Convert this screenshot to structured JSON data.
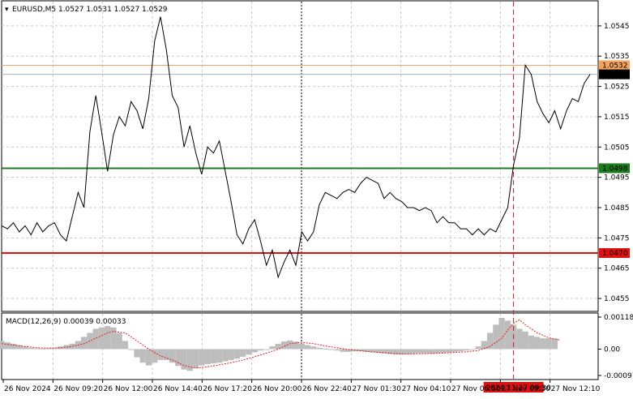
{
  "window": {
    "symbol_header": "EURUSD,M5  1.0527 1.0531 1.0527 1.0529"
  },
  "macd": {
    "header": "MACD(12,26,9) 0.00039 0.00033",
    "axis_labels": [
      "0.00118",
      "0.00",
      "-0.00097"
    ]
  },
  "price_axis": {
    "labels": [
      "1.0545",
      "1.0535",
      "1.0525",
      "1.0515",
      "1.0505",
      "1.0495",
      "1.0485",
      "1.0475",
      "1.0465",
      "1.0455"
    ]
  },
  "time_axis": {
    "labels": [
      "26 Nov 2024",
      "26 Nov 09:20",
      "26 Nov 12:00",
      "26 Nov 14:40",
      "26 Nov 17:20",
      "26 Nov 20:00",
      "26 Nov 22:40",
      "27 Nov 01:30",
      "27 Nov 04:10",
      "27 Nov 06:50",
      "27 Nov 09:30",
      "27 Nov 12:10"
    ],
    "crosshair_label": "2024.11.27 09:30"
  },
  "levels": [
    {
      "name": "resistance-orange",
      "value": 1.0532,
      "label": "1.0532",
      "color": "#f4a460"
    },
    {
      "name": "support-green",
      "value": 1.0498,
      "label": "1.0498",
      "color": "#1e7b1e"
    },
    {
      "name": "support-red",
      "value": 1.047,
      "label": "1.0470",
      "color": "#e01010"
    }
  ],
  "current_price": {
    "value": 1.0529,
    "label": "1.0529",
    "color": "#000000"
  },
  "colors": {
    "price_line": "#000000",
    "grid": "#c8c8c8",
    "macd_hist": "#bdbdbd",
    "macd_signal": "#e02020",
    "crosshair": "#e01010"
  },
  "chart_data": {
    "type": "line",
    "symbol": "EURUSD",
    "timeframe": "M5",
    "y_range": [
      1.0451,
      1.0553
    ],
    "x_range": [
      0,
      100
    ],
    "price_series": [
      [
        0,
        1.0479
      ],
      [
        1,
        1.0478
      ],
      [
        2,
        1.048
      ],
      [
        3,
        1.0477
      ],
      [
        4,
        1.0479
      ],
      [
        5,
        1.0476
      ],
      [
        6,
        1.048
      ],
      [
        7,
        1.0477
      ],
      [
        8,
        1.0479
      ],
      [
        9,
        1.048
      ],
      [
        10,
        1.0476
      ],
      [
        11,
        1.0474
      ],
      [
        12,
        1.0482
      ],
      [
        13,
        1.049
      ],
      [
        14,
        1.0485
      ],
      [
        15,
        1.051
      ],
      [
        16,
        1.0522
      ],
      [
        17,
        1.051
      ],
      [
        18,
        1.0497
      ],
      [
        19,
        1.0509
      ],
      [
        20,
        1.0515
      ],
      [
        21,
        1.0512
      ],
      [
        22,
        1.052
      ],
      [
        23,
        1.0517
      ],
      [
        24,
        1.0511
      ],
      [
        25,
        1.0521
      ],
      [
        26,
        1.054
      ],
      [
        27,
        1.0548
      ],
      [
        28,
        1.0537
      ],
      [
        29,
        1.0522
      ],
      [
        30,
        1.0518
      ],
      [
        31,
        1.0505
      ],
      [
        32,
        1.0512
      ],
      [
        33,
        1.0503
      ],
      [
        34,
        1.0496
      ],
      [
        35,
        1.0505
      ],
      [
        36,
        1.0503
      ],
      [
        37,
        1.0507
      ],
      [
        38,
        1.0497
      ],
      [
        39,
        1.0487
      ],
      [
        40,
        1.0476
      ],
      [
        41,
        1.0473
      ],
      [
        42,
        1.0478
      ],
      [
        43,
        1.0481
      ],
      [
        44,
        1.0474
      ],
      [
        45,
        1.0466
      ],
      [
        46,
        1.0471
      ],
      [
        47,
        1.0462
      ],
      [
        48,
        1.0467
      ],
      [
        49,
        1.0471
      ],
      [
        50,
        1.0466
      ],
      [
        51,
        1.0477
      ],
      [
        52,
        1.0474
      ],
      [
        53,
        1.0477
      ],
      [
        54,
        1.0486
      ],
      [
        55,
        1.049
      ],
      [
        56,
        1.0489
      ],
      [
        57,
        1.0488
      ],
      [
        58,
        1.049
      ],
      [
        59,
        1.0491
      ],
      [
        60,
        1.049
      ],
      [
        61,
        1.0493
      ],
      [
        62,
        1.0495
      ],
      [
        63,
        1.0494
      ],
      [
        64,
        1.0493
      ],
      [
        65,
        1.0488
      ],
      [
        66,
        1.049
      ],
      [
        67,
        1.0488
      ],
      [
        68,
        1.0487
      ],
      [
        69,
        1.0485
      ],
      [
        70,
        1.0485
      ],
      [
        71,
        1.0484
      ],
      [
        72,
        1.0485
      ],
      [
        73,
        1.0484
      ],
      [
        74,
        1.048
      ],
      [
        75,
        1.0482
      ],
      [
        76,
        1.048
      ],
      [
        77,
        1.048
      ],
      [
        78,
        1.0478
      ],
      [
        79,
        1.0478
      ],
      [
        80,
        1.0476
      ],
      [
        81,
        1.0478
      ],
      [
        82,
        1.0476
      ],
      [
        83,
        1.0478
      ],
      [
        84,
        1.0477
      ],
      [
        85,
        1.0481
      ],
      [
        86,
        1.0485
      ],
      [
        87,
        1.0499
      ],
      [
        88,
        1.0508
      ],
      [
        89,
        1.0532
      ],
      [
        90,
        1.0529
      ],
      [
        91,
        1.052
      ],
      [
        92,
        1.0516
      ],
      [
        93,
        1.0513
      ],
      [
        94,
        1.0517
      ],
      [
        95,
        1.0511
      ],
      [
        96,
        1.0517
      ],
      [
        97,
        1.0521
      ],
      [
        98,
        1.052
      ],
      [
        99,
        1.0526
      ],
      [
        100,
        1.0529
      ]
    ],
    "macd_range": [
      -0.00097,
      0.00118
    ],
    "macd_hist": [
      [
        0,
        0.0003
      ],
      [
        1,
        0.00025
      ],
      [
        2,
        0.0002
      ],
      [
        3,
        0.00015
      ],
      [
        4,
        0.0001
      ],
      [
        5,
        5e-05
      ],
      [
        6,
        3e-05
      ],
      [
        7,
        2e-05
      ],
      [
        8,
        3e-05
      ],
      [
        9,
        5e-05
      ],
      [
        10,
        0.0001
      ],
      [
        11,
        0.00015
      ],
      [
        12,
        0.0002
      ],
      [
        13,
        0.0003
      ],
      [
        14,
        0.00045
      ],
      [
        15,
        0.0006
      ],
      [
        16,
        0.00075
      ],
      [
        17,
        0.0008
      ],
      [
        18,
        0.00085
      ],
      [
        19,
        0.0008
      ],
      [
        20,
        0.0006
      ],
      [
        21,
        0.0003
      ],
      [
        22,
        0.0
      ],
      [
        23,
        -0.0003
      ],
      [
        24,
        -0.0005
      ],
      [
        25,
        -0.0006
      ],
      [
        26,
        -0.0005
      ],
      [
        27,
        -0.0004
      ],
      [
        28,
        -0.0004
      ],
      [
        29,
        -0.0005
      ],
      [
        30,
        -0.00062
      ],
      [
        31,
        -0.00075
      ],
      [
        32,
        -0.0008
      ],
      [
        33,
        -0.0007
      ],
      [
        34,
        -0.0006
      ],
      [
        35,
        -0.00055
      ],
      [
        36,
        -0.00052
      ],
      [
        37,
        -0.0005
      ],
      [
        38,
        -0.00045
      ],
      [
        39,
        -0.0004
      ],
      [
        40,
        -0.00035
      ],
      [
        41,
        -0.00028
      ],
      [
        42,
        -0.0002
      ],
      [
        43,
        -0.00012
      ],
      [
        44,
        -5e-05
      ],
      [
        45,
        0.0
      ],
      [
        46,
        0.0001
      ],
      [
        47,
        0.0002
      ],
      [
        48,
        0.00028
      ],
      [
        49,
        0.00032
      ],
      [
        50,
        0.00028
      ],
      [
        51,
        0.0002
      ],
      [
        52,
        0.00015
      ],
      [
        53,
        0.0001
      ],
      [
        54,
        5e-05
      ],
      [
        55,
        2e-05
      ],
      [
        56,
        0.0
      ],
      [
        57,
        -5e-05
      ],
      [
        58,
        -0.0001
      ],
      [
        59,
        -0.0001
      ],
      [
        60,
        -8e-05
      ],
      [
        61,
        -8e-05
      ],
      [
        62,
        -0.0001
      ],
      [
        63,
        -0.00012
      ],
      [
        64,
        -0.00014
      ],
      [
        65,
        -0.00016
      ],
      [
        66,
        -0.00018
      ],
      [
        67,
        -0.0002
      ],
      [
        68,
        -0.0002
      ],
      [
        69,
        -0.00018
      ],
      [
        70,
        -0.00016
      ],
      [
        71,
        -0.00015
      ],
      [
        72,
        -0.00015
      ],
      [
        73,
        -0.00016
      ],
      [
        74,
        -0.00015
      ],
      [
        75,
        -0.00014
      ],
      [
        76,
        -0.00012
      ],
      [
        77,
        -0.0001
      ],
      [
        78,
        -8e-05
      ],
      [
        79,
        -5e-05
      ],
      [
        80,
        0.0
      ],
      [
        81,
        0.0001
      ],
      [
        82,
        0.0003
      ],
      [
        83,
        0.0006
      ],
      [
        84,
        0.0009
      ],
      [
        85,
        0.00115
      ],
      [
        86,
        0.00105
      ],
      [
        87,
        0.0009
      ],
      [
        88,
        0.00075
      ],
      [
        89,
        0.00065
      ],
      [
        90,
        0.0005
      ],
      [
        91,
        0.00045
      ],
      [
        92,
        0.0004
      ],
      [
        93,
        0.0004
      ],
      [
        94,
        0.00039
      ]
    ],
    "macd_signal": [
      [
        0,
        0.0002
      ],
      [
        2,
        0.00015
      ],
      [
        4,
        0.0001
      ],
      [
        6,
        5e-05
      ],
      [
        8,
        4e-05
      ],
      [
        10,
        5e-05
      ],
      [
        12,
        0.0001
      ],
      [
        14,
        0.0002
      ],
      [
        16,
        0.0004
      ],
      [
        18,
        0.0006
      ],
      [
        19,
        0.00065
      ],
      [
        21,
        0.0006
      ],
      [
        23,
        0.0003
      ],
      [
        25,
        0.0
      ],
      [
        27,
        -0.00025
      ],
      [
        29,
        -0.0004
      ],
      [
        31,
        -0.0006
      ],
      [
        33,
        -0.0007
      ],
      [
        35,
        -0.00065
      ],
      [
        37,
        -0.00058
      ],
      [
        39,
        -0.0005
      ],
      [
        41,
        -0.0004
      ],
      [
        43,
        -0.00028
      ],
      [
        45,
        -0.00015
      ],
      [
        47,
        0.0
      ],
      [
        49,
        0.0002
      ],
      [
        51,
        0.00025
      ],
      [
        53,
        0.0002
      ],
      [
        55,
        0.00012
      ],
      [
        57,
        5e-05
      ],
      [
        59,
        -2e-05
      ],
      [
        61,
        -6e-05
      ],
      [
        63,
        -0.0001
      ],
      [
        65,
        -0.00013
      ],
      [
        67,
        -0.00016
      ],
      [
        69,
        -0.00018
      ],
      [
        71,
        -0.00017
      ],
      [
        73,
        -0.00016
      ],
      [
        75,
        -0.00015
      ],
      [
        77,
        -0.00012
      ],
      [
        79,
        -0.0001
      ],
      [
        81,
        -5e-05
      ],
      [
        83,
        0.0001
      ],
      [
        85,
        0.0004
      ],
      [
        86,
        0.0007
      ],
      [
        87,
        0.00095
      ],
      [
        88,
        0.00108
      ],
      [
        89,
        0.0009
      ],
      [
        91,
        0.0006
      ],
      [
        93,
        0.00042
      ],
      [
        95,
        0.00033
      ]
    ]
  }
}
